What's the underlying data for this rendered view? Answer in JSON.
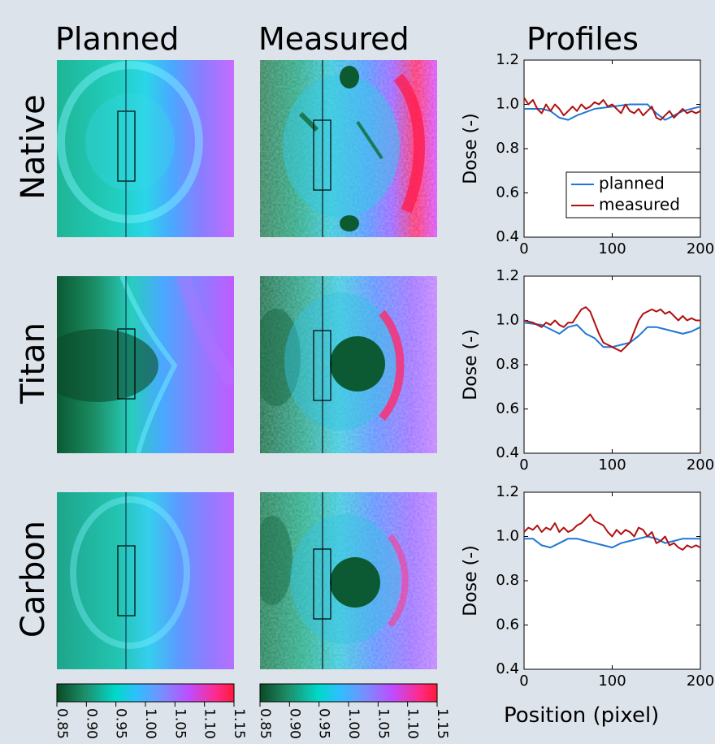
{
  "titles": {
    "planned": "Planned",
    "measured": "Measured",
    "profiles": "Profiles"
  },
  "rows": [
    "Native",
    "Titan",
    "Carbon"
  ],
  "colorbar": {
    "ticks": [
      "0.85",
      "0.90",
      "0.95",
      "1.00",
      "1.05",
      "1.10",
      "1.15"
    ],
    "range": [
      0.85,
      1.15
    ],
    "colors": [
      "#0a4a24",
      "#1e8f6c",
      "#00d9c8",
      "#2fbfff",
      "#7a8cff",
      "#c04bff",
      "#ff2a8a",
      "#ff1a3a"
    ]
  },
  "colors": {
    "planned": "#1f77d4",
    "measured": "#b01010",
    "background": "#dde3ea"
  },
  "chart_data": [
    {
      "type": "line",
      "title": "Native",
      "xlabel": "",
      "ylabel": "Dose (-)",
      "xlim": [
        0,
        200
      ],
      "ylim": [
        0.4,
        1.2
      ],
      "xticks": [
        "0",
        "100",
        "200"
      ],
      "yticks": [
        "0.4",
        "0.6",
        "0.8",
        "1.0",
        "1.2"
      ],
      "legend": "right",
      "series": [
        {
          "name": "planned",
          "x": [
            0,
            20,
            30,
            40,
            50,
            60,
            80,
            100,
            120,
            140,
            150,
            160,
            170,
            180,
            200
          ],
          "y": [
            0.98,
            0.98,
            0.97,
            0.94,
            0.93,
            0.95,
            0.98,
            0.99,
            1.0,
            1.0,
            0.96,
            0.93,
            0.95,
            0.97,
            0.99
          ]
        },
        {
          "name": "measured",
          "x": [
            0,
            5,
            10,
            15,
            20,
            25,
            30,
            35,
            40,
            45,
            50,
            55,
            60,
            65,
            70,
            75,
            80,
            85,
            90,
            95,
            100,
            105,
            110,
            115,
            120,
            125,
            130,
            135,
            140,
            145,
            150,
            155,
            160,
            165,
            170,
            175,
            180,
            185,
            190,
            195,
            200
          ],
          "y": [
            1.03,
            1.0,
            1.02,
            0.98,
            0.96,
            1.0,
            0.97,
            1.0,
            0.98,
            0.95,
            0.97,
            0.99,
            0.97,
            1.0,
            0.98,
            0.99,
            1.01,
            1.0,
            1.02,
            0.99,
            1.0,
            0.98,
            0.96,
            1.0,
            0.97,
            0.96,
            0.98,
            0.95,
            0.97,
            0.99,
            0.94,
            0.93,
            0.95,
            0.97,
            0.94,
            0.96,
            0.98,
            0.96,
            0.97,
            0.96,
            0.97
          ]
        }
      ]
    },
    {
      "type": "line",
      "title": "Titan",
      "xlabel": "",
      "ylabel": "Dose (-)",
      "xlim": [
        0,
        200
      ],
      "ylim": [
        0.4,
        1.2
      ],
      "xticks": [
        "0",
        "100",
        "200"
      ],
      "yticks": [
        "0.4",
        "0.6",
        "0.8",
        "1.0",
        "1.2"
      ],
      "series": [
        {
          "name": "planned",
          "x": [
            0,
            20,
            30,
            40,
            50,
            60,
            70,
            80,
            90,
            100,
            110,
            120,
            130,
            140,
            150,
            160,
            170,
            180,
            190,
            200
          ],
          "y": [
            0.99,
            0.98,
            0.96,
            0.94,
            0.97,
            0.98,
            0.94,
            0.92,
            0.88,
            0.88,
            0.89,
            0.9,
            0.93,
            0.97,
            0.97,
            0.96,
            0.95,
            0.94,
            0.95,
            0.97
          ]
        },
        {
          "name": "measured",
          "x": [
            0,
            10,
            20,
            25,
            30,
            35,
            40,
            45,
            50,
            55,
            60,
            65,
            70,
            75,
            80,
            85,
            90,
            95,
            100,
            105,
            110,
            115,
            120,
            125,
            130,
            135,
            140,
            145,
            150,
            155,
            160,
            165,
            170,
            175,
            180,
            185,
            190,
            195,
            200
          ],
          "y": [
            1.0,
            0.99,
            0.97,
            0.99,
            0.98,
            1.0,
            0.98,
            0.97,
            0.99,
            0.99,
            1.02,
            1.05,
            1.06,
            1.04,
            0.99,
            0.94,
            0.9,
            0.89,
            0.88,
            0.87,
            0.86,
            0.88,
            0.9,
            0.95,
            1.0,
            1.03,
            1.04,
            1.05,
            1.04,
            1.05,
            1.03,
            1.04,
            1.02,
            1.0,
            1.02,
            1.0,
            1.01,
            1.0,
            1.0
          ]
        }
      ]
    },
    {
      "type": "line",
      "title": "Carbon",
      "xlabel": "Position (pixel)",
      "ylabel": "Dose (-)",
      "xlim": [
        0,
        200
      ],
      "ylim": [
        0.4,
        1.2
      ],
      "xticks": [
        "0",
        "100",
        "200"
      ],
      "yticks": [
        "0.4",
        "0.6",
        "0.8",
        "1.0",
        "1.2"
      ],
      "series": [
        {
          "name": "planned",
          "x": [
            0,
            10,
            20,
            30,
            40,
            50,
            60,
            70,
            80,
            90,
            100,
            110,
            120,
            130,
            140,
            150,
            160,
            170,
            180,
            190,
            200
          ],
          "y": [
            0.99,
            0.99,
            0.96,
            0.95,
            0.97,
            0.99,
            0.99,
            0.98,
            0.97,
            0.96,
            0.95,
            0.97,
            0.98,
            0.99,
            1.0,
            0.99,
            0.97,
            0.98,
            0.99,
            0.99,
            0.99
          ]
        },
        {
          "name": "measured",
          "x": [
            0,
            5,
            10,
            15,
            20,
            25,
            30,
            35,
            40,
            45,
            50,
            55,
            60,
            65,
            70,
            75,
            80,
            85,
            90,
            95,
            100,
            105,
            110,
            115,
            120,
            125,
            130,
            135,
            140,
            145,
            150,
            155,
            160,
            165,
            170,
            175,
            180,
            185,
            190,
            195,
            200
          ],
          "y": [
            1.02,
            1.04,
            1.03,
            1.05,
            1.02,
            1.04,
            1.03,
            1.06,
            1.02,
            1.04,
            1.02,
            1.03,
            1.05,
            1.06,
            1.08,
            1.1,
            1.07,
            1.06,
            1.05,
            1.02,
            1.0,
            1.03,
            1.01,
            1.03,
            1.02,
            1.0,
            1.04,
            1.03,
            1.0,
            1.02,
            0.97,
            0.98,
            1.0,
            0.96,
            0.97,
            0.95,
            0.94,
            0.96,
            0.95,
            0.96,
            0.95
          ]
        }
      ]
    }
  ]
}
